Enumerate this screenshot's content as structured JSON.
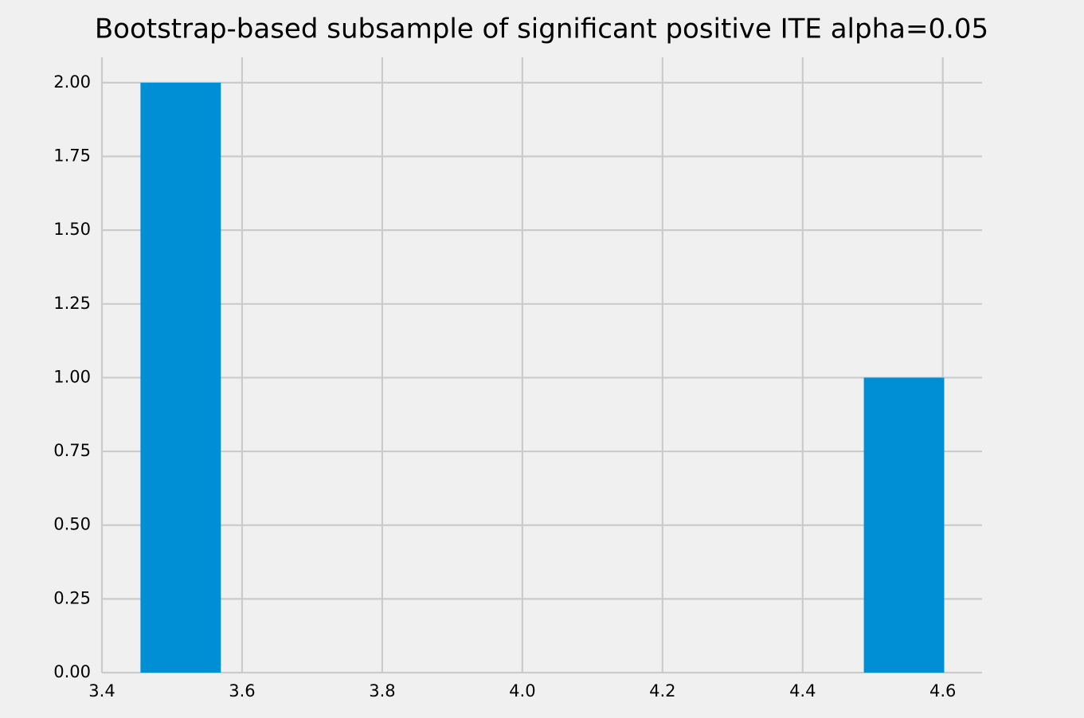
{
  "chart_data": {
    "type": "histogram",
    "title": "Bootstrap-based subsample of significant positive ITE alpha=0.05",
    "bins": [
      3.455,
      3.5697,
      3.6844,
      3.7991,
      3.9138,
      4.0285,
      4.1432,
      4.2579,
      4.3726,
      4.4873,
      4.602
    ],
    "values": [
      2,
      0,
      0,
      0,
      0,
      0,
      0,
      0,
      0,
      1
    ],
    "color": "#008fd5",
    "xlim": [
      3.4,
      4.656
    ],
    "ylim": [
      0,
      2.086
    ],
    "xticks": [
      3.4,
      3.6,
      3.8,
      {
        "value": 4,
        "label": "4.0"
      },
      4.2,
      4.4,
      4.6
    ],
    "yticks": [
      {
        "value": 0,
        "label": "0.00"
      },
      {
        "value": 0.25,
        "label": "0.25"
      },
      {
        "value": 0.5,
        "label": "0.50"
      },
      {
        "value": 0.75,
        "label": "0.75"
      },
      {
        "value": 1,
        "label": "1.00"
      },
      {
        "value": 1.25,
        "label": "1.25"
      },
      {
        "value": 1.5,
        "label": "1.50"
      },
      {
        "value": 1.75,
        "label": "1.75"
      },
      {
        "value": 2,
        "label": "2.00"
      }
    ],
    "grid": true
  }
}
